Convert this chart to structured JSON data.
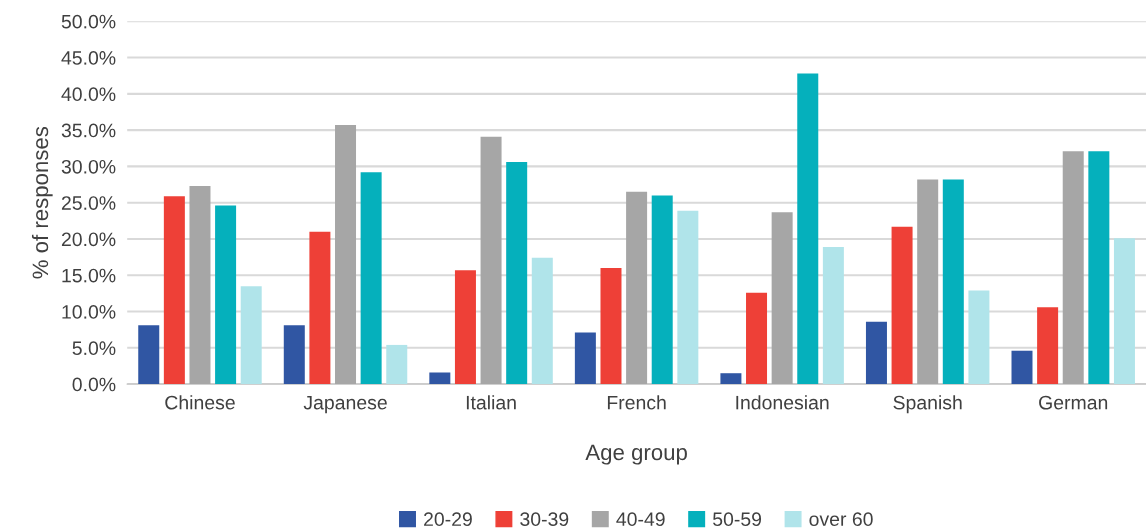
{
  "chart_data": {
    "type": "bar",
    "xlabel": "Age group",
    "ylabel": "% of responses",
    "categories": [
      "Chinese",
      "Japanese",
      "Italian",
      "French",
      "Indonesian",
      "Spanish",
      "German"
    ],
    "series": [
      {
        "name": "20-29",
        "color": "#3056a3",
        "values": [
          8.1,
          8.1,
          1.6,
          7.1,
          1.5,
          8.6,
          4.6
        ]
      },
      {
        "name": "30-39",
        "color": "#ee4037",
        "values": [
          25.9,
          21.0,
          15.7,
          16.0,
          12.6,
          21.7,
          10.6
        ]
      },
      {
        "name": "40-49",
        "color": "#a6a6a6",
        "values": [
          27.3,
          35.7,
          34.1,
          26.5,
          23.7,
          28.2,
          32.1
        ]
      },
      {
        "name": "50-59",
        "color": "#05b0bc",
        "values": [
          24.6,
          29.2,
          30.6,
          26.0,
          42.8,
          28.2,
          32.1
        ]
      },
      {
        "name": "over 60",
        "color": "#b0e4ea",
        "values": [
          13.5,
          5.4,
          17.4,
          23.9,
          18.9,
          12.9,
          20.1
        ]
      }
    ],
    "ylim": [
      0,
      50
    ],
    "yticks": [
      {
        "value": 0,
        "label": "0.0%"
      },
      {
        "value": 5,
        "label": "5.0%"
      },
      {
        "value": 10,
        "label": "10.0%"
      },
      {
        "value": 15,
        "label": "15.0%"
      },
      {
        "value": 20,
        "label": "20.0%"
      },
      {
        "value": 25,
        "label": "25.0%"
      },
      {
        "value": 30,
        "label": "30.0%"
      },
      {
        "value": 35,
        "label": "35.0%"
      },
      {
        "value": 40,
        "label": "40.0%"
      },
      {
        "value": 45,
        "label": "45.0%"
      },
      {
        "value": 50,
        "label": "50.0%"
      }
    ],
    "grid": "y",
    "legend": "bottom"
  }
}
